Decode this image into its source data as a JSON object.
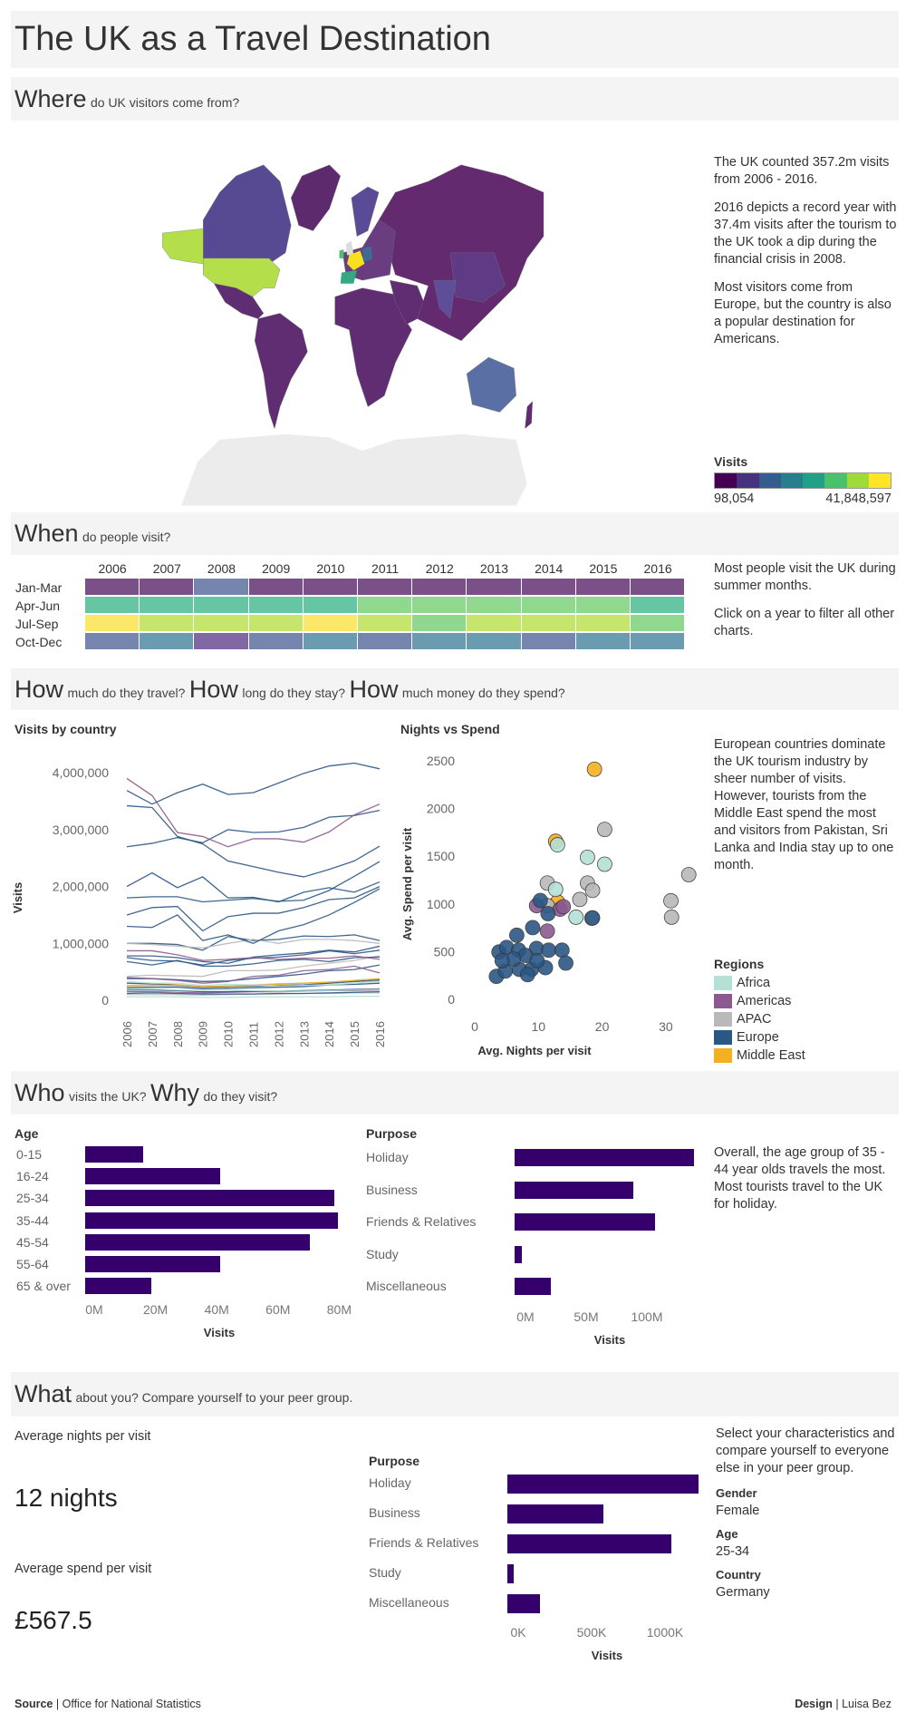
{
  "title": "The UK as a Travel Destination",
  "where": {
    "heading_big": "Where",
    "heading_small": "do UK visitors come from?",
    "text1": "The UK counted 357.2m visits from 2006 - 2016.",
    "text2": "2016 depicts a record year with 37.4m visits after the tourism to the UK took a dip during the financial crisis in 2008.",
    "text3": "Most visitors come from Europe, but the country is also a popular destination for Americans.",
    "legend_title": "Visits",
    "legend_min": "98,054",
    "legend_max": "41,848,597",
    "legend_colors": [
      "#440154",
      "#46327e",
      "#365c8d",
      "#277f8e",
      "#1fa187",
      "#4ac16d",
      "#a0da39",
      "#fde725"
    ]
  },
  "when": {
    "heading_big": "When",
    "heading_small": "do people visit?",
    "years": [
      "2006",
      "2007",
      "2008",
      "2009",
      "2010",
      "2011",
      "2012",
      "2013",
      "2014",
      "2015",
      "2016"
    ],
    "quarters": [
      "Jan-Mar",
      "Apr-Jun",
      "Jul-Sep",
      "Oct-Dec"
    ],
    "cells": [
      [
        "#7b4f87",
        "#7b4f87",
        "#7685ad",
        "#7b4f87",
        "#7b4f87",
        "#7b4f87",
        "#7b4f87",
        "#7b4f87",
        "#7b4f87",
        "#7b4f87",
        "#7b4f87"
      ],
      [
        "#66c6a4",
        "#66c6a4",
        "#66c6a4",
        "#66c6a4",
        "#66c6a4",
        "#8fd88e",
        "#8fd88e",
        "#8fd88e",
        "#8fd88e",
        "#8fd88e",
        "#66c6a4"
      ],
      [
        "#fce868",
        "#c6e56c",
        "#c6e56c",
        "#c6e56c",
        "#fce868",
        "#c6e56c",
        "#8fd88e",
        "#c6e56c",
        "#c6e56c",
        "#c6e56c",
        "#8fd88e"
      ],
      [
        "#7685ad",
        "#6a9bb0",
        "#8268a2",
        "#7685ad",
        "#6a9bb0",
        "#7685ad",
        "#6a9bb0",
        "#6a9bb0",
        "#7685ad",
        "#6a9bb0",
        "#6a9bb0"
      ]
    ],
    "text1": "Most people visit the UK during summer months.",
    "text2": "Click on a year to filter all other charts."
  },
  "how": {
    "h1_big": "How",
    "h1_small": "much do they travel?",
    "h2_big": "How",
    "h2_small": "long do they stay?",
    "h3_big": "How",
    "h3_small": "much money do they spend?",
    "text1": "European countries dominate the UK tourism industry by sheer number of visits.",
    "text2": "However, tourists from the Middle East spend the most and visitors from Pakistan, Sri Lanka and India stay up to one month.",
    "legend_title": "Regions",
    "regions": [
      {
        "name": "Africa",
        "color": "#b5e0d6"
      },
      {
        "name": "Americas",
        "color": "#8b5b8f"
      },
      {
        "name": "APAC",
        "color": "#b9b9b9"
      },
      {
        "name": "Europe",
        "color": "#2b5785"
      },
      {
        "name": "Middle East",
        "color": "#f5b021"
      }
    ]
  },
  "chart_data": [
    {
      "type": "line",
      "title": "Visits by country",
      "xlabel": "",
      "ylabel": "Visits",
      "x": [
        "2006",
        "2007",
        "2008",
        "2009",
        "2010",
        "2011",
        "2012",
        "2013",
        "2014",
        "2015",
        "2016"
      ],
      "ylim": [
        0,
        4200000
      ],
      "yticks": [
        {
          "v": 0,
          "label": "0"
        },
        {
          "v": 1000000,
          "label": "1,000,000"
        },
        {
          "v": 2000000,
          "label": "2,000,000"
        },
        {
          "v": 3000000,
          "label": "3,000,000"
        },
        {
          "v": 4000000,
          "label": "4,000,000"
        }
      ],
      "series": [
        {
          "region": "Europe",
          "values": [
            3690000,
            3450000,
            3650000,
            3800000,
            3620000,
            3650000,
            3820000,
            3990000,
            4120000,
            4170000,
            4070000
          ]
        },
        {
          "region": "Europe",
          "values": [
            3420000,
            3390000,
            2880000,
            2750000,
            2450000,
            2350000,
            2250000,
            2170000,
            2300000,
            2450000,
            2710000
          ]
        },
        {
          "region": "Americas",
          "values": [
            3900000,
            3600000,
            2950000,
            2880000,
            2700000,
            2840000,
            2840000,
            2780000,
            2960000,
            3260000,
            3450000
          ]
        },
        {
          "region": "Europe",
          "values": [
            2700000,
            2760000,
            2860000,
            2770000,
            3000000,
            2950000,
            2960000,
            3040000,
            3220000,
            3250000,
            3340000
          ]
        },
        {
          "region": "Europe",
          "values": [
            2000000,
            2240000,
            1980000,
            2170000,
            1800000,
            1810000,
            1730000,
            1900000,
            1980000,
            1900000,
            2080000
          ]
        },
        {
          "region": "Europe",
          "values": [
            1800000,
            1820000,
            1820000,
            1730000,
            1760000,
            1790000,
            1740000,
            1760000,
            1930000,
            2180000,
            2440000
          ]
        },
        {
          "region": "Europe",
          "values": [
            1500000,
            1630000,
            1650000,
            1220000,
            1470000,
            1530000,
            1530000,
            1630000,
            1770000,
            1800000,
            2000000
          ]
        },
        {
          "region": "Europe",
          "values": [
            1300000,
            1280000,
            1500000,
            1050000,
            1150000,
            1000000,
            1220000,
            1330000,
            1500000,
            1720000,
            1960000
          ]
        },
        {
          "region": "APAC",
          "values": [
            1000000,
            980000,
            950000,
            920000,
            1000000,
            1070000,
            1000000,
            1070000,
            1070000,
            1050000,
            1000000
          ]
        },
        {
          "region": "Europe",
          "values": [
            1000000,
            1000000,
            980000,
            880000,
            1120000,
            1050000,
            1070000,
            1130000,
            1120000,
            1150000,
            1050000
          ]
        },
        {
          "region": "Americas",
          "values": [
            870000,
            870000,
            800000,
            700000,
            720000,
            750000,
            720000,
            740000,
            740000,
            780000,
            720000
          ]
        },
        {
          "region": "Europe",
          "values": [
            780000,
            780000,
            750000,
            680000,
            650000,
            760000,
            800000,
            830000,
            880000,
            850000,
            950000
          ]
        },
        {
          "region": "Europe",
          "values": [
            750000,
            700000,
            690000,
            620000,
            700000,
            740000,
            760000,
            800000,
            870000,
            820000,
            880000
          ]
        },
        {
          "region": "Europe",
          "values": [
            680000,
            620000,
            700000,
            600000,
            600000,
            640000,
            700000,
            720000,
            680000,
            750000,
            760000
          ]
        },
        {
          "region": "APAC",
          "values": [
            420000,
            440000,
            430000,
            420000,
            520000,
            520000,
            530000,
            600000,
            650000,
            700000,
            780000
          ]
        },
        {
          "region": "Americas",
          "values": [
            400000,
            380000,
            350000,
            300000,
            330000,
            420000,
            440000,
            520000,
            540000,
            600000,
            480000
          ]
        },
        {
          "region": "Europe",
          "values": [
            380000,
            380000,
            360000,
            330000,
            340000,
            380000,
            420000,
            460000,
            520000,
            540000,
            620000
          ]
        },
        {
          "region": "Africa",
          "values": [
            330000,
            300000,
            300000,
            260000,
            280000,
            270000,
            250000,
            260000,
            270000,
            300000,
            320000
          ]
        },
        {
          "region": "Middle East",
          "values": [
            250000,
            260000,
            270000,
            240000,
            250000,
            260000,
            280000,
            300000,
            320000,
            350000,
            380000
          ]
        },
        {
          "region": "Europe",
          "values": [
            300000,
            290000,
            270000,
            230000,
            240000,
            250000,
            260000,
            270000,
            300000,
            330000,
            360000
          ]
        },
        {
          "region": "APAC",
          "values": [
            260000,
            270000,
            250000,
            230000,
            250000,
            270000,
            290000,
            300000,
            310000,
            330000,
            340000
          ]
        },
        {
          "region": "Europe",
          "values": [
            220000,
            230000,
            230000,
            200000,
            210000,
            220000,
            230000,
            240000,
            270000,
            280000,
            300000
          ]
        },
        {
          "region": "Africa",
          "values": [
            200000,
            200000,
            180000,
            170000,
            180000,
            170000,
            160000,
            160000,
            170000,
            180000,
            190000
          ]
        },
        {
          "region": "Europe",
          "values": [
            180000,
            180000,
            170000,
            150000,
            150000,
            160000,
            160000,
            170000,
            180000,
            190000,
            200000
          ]
        },
        {
          "region": "Americas",
          "values": [
            150000,
            150000,
            140000,
            130000,
            140000,
            150000,
            150000,
            160000,
            170000,
            170000,
            180000
          ]
        },
        {
          "region": "Europe",
          "values": [
            120000,
            130000,
            120000,
            110000,
            110000,
            110000,
            120000,
            120000,
            130000,
            140000,
            150000
          ]
        },
        {
          "region": "APAC",
          "values": [
            100000,
            100000,
            100000,
            90000,
            100000,
            110000,
            110000,
            120000,
            120000,
            130000,
            130000
          ]
        },
        {
          "region": "Africa",
          "values": [
            60000,
            60000,
            60000,
            50000,
            50000,
            60000,
            60000,
            60000,
            60000,
            70000,
            70000
          ]
        }
      ]
    },
    {
      "type": "scatter",
      "title": "Nights vs Spend",
      "xlabel": "Avg. Nights per visit",
      "ylabel": "Avg. Spend per visit",
      "xlim": [
        0,
        35
      ],
      "ylim": [
        0,
        2500
      ],
      "xticks": [
        0,
        10,
        20,
        30
      ],
      "yticks": [
        0,
        500,
        1000,
        1500,
        2000,
        2500
      ],
      "points": [
        {
          "region": "Middle East",
          "x": 18.8,
          "y": 2412
        },
        {
          "region": "Middle East",
          "x": 12.7,
          "y": 1657
        },
        {
          "region": "Middle East",
          "x": 13.0,
          "y": 1020
        },
        {
          "region": "APAC",
          "x": 20.4,
          "y": 1781
        },
        {
          "region": "APAC",
          "x": 33.6,
          "y": 1307
        },
        {
          "region": "APAC",
          "x": 30.8,
          "y": 1033
        },
        {
          "region": "APAC",
          "x": 30.9,
          "y": 861
        },
        {
          "region": "APAC",
          "x": 11.4,
          "y": 1219
        },
        {
          "region": "APAC",
          "x": 17.7,
          "y": 1219
        },
        {
          "region": "APAC",
          "x": 18.5,
          "y": 1142
        },
        {
          "region": "APAC",
          "x": 16.5,
          "y": 1047
        },
        {
          "region": "APAC",
          "x": 11.4,
          "y": 982
        },
        {
          "region": "APAC",
          "x": 18.4,
          "y": 850
        },
        {
          "region": "Africa",
          "x": 13.0,
          "y": 1620
        },
        {
          "region": "Africa",
          "x": 17.7,
          "y": 1489
        },
        {
          "region": "Africa",
          "x": 20.4,
          "y": 1416
        },
        {
          "region": "Africa",
          "x": 12.7,
          "y": 1153
        },
        {
          "region": "Africa",
          "x": 15.9,
          "y": 861
        },
        {
          "region": "Americas",
          "x": 9.7,
          "y": 982
        },
        {
          "region": "Americas",
          "x": 13.4,
          "y": 945
        },
        {
          "region": "Americas",
          "x": 11.4,
          "y": 715
        },
        {
          "region": "Americas",
          "x": 13.9,
          "y": 971
        },
        {
          "region": "Europe",
          "x": 10.3,
          "y": 1036
        },
        {
          "region": "Europe",
          "x": 11.5,
          "y": 898
        },
        {
          "region": "Europe",
          "x": 9.1,
          "y": 752
        },
        {
          "region": "Europe",
          "x": 6.6,
          "y": 672
        },
        {
          "region": "Europe",
          "x": 3.8,
          "y": 496
        },
        {
          "region": "Europe",
          "x": 5.0,
          "y": 544
        },
        {
          "region": "Europe",
          "x": 6.9,
          "y": 515
        },
        {
          "region": "Europe",
          "x": 9.7,
          "y": 533
        },
        {
          "region": "Europe",
          "x": 11.6,
          "y": 515
        },
        {
          "region": "Europe",
          "x": 13.7,
          "y": 515
        },
        {
          "region": "Europe",
          "x": 14.3,
          "y": 380
        },
        {
          "region": "Europe",
          "x": 3.4,
          "y": 241
        },
        {
          "region": "Europe",
          "x": 4.8,
          "y": 296
        },
        {
          "region": "Europe",
          "x": 7.0,
          "y": 314
        },
        {
          "region": "Europe",
          "x": 8.9,
          "y": 314
        },
        {
          "region": "Europe",
          "x": 11.1,
          "y": 332
        },
        {
          "region": "Europe",
          "x": 8.0,
          "y": 460
        },
        {
          "region": "Europe",
          "x": 6.1,
          "y": 423
        },
        {
          "region": "Europe",
          "x": 8.3,
          "y": 259
        },
        {
          "region": "Europe",
          "x": 18.5,
          "y": 854
        },
        {
          "region": "Europe",
          "x": 4.3,
          "y": 405
        },
        {
          "region": "Europe",
          "x": 9.8,
          "y": 405
        }
      ]
    },
    {
      "type": "bar",
      "title": "Age",
      "xlabel": "Visits",
      "categories": [
        "0-15",
        "16-24",
        "25-34",
        "35-44",
        "45-54",
        "55-64",
        "65 & over"
      ],
      "values": [
        18.8,
        44,
        81.5,
        82.6,
        73.5,
        44,
        21.7
      ],
      "unit": "M",
      "xticks": [
        {
          "v": 0,
          "label": "0M"
        },
        {
          "v": 20,
          "label": "20M"
        },
        {
          "v": 40,
          "label": "40M"
        },
        {
          "v": 60,
          "label": "60M"
        },
        {
          "v": 80,
          "label": "80M"
        }
      ]
    },
    {
      "type": "bar",
      "title": "Purpose",
      "xlabel": "Visits",
      "categories": [
        "Holiday",
        "Business",
        "Friends & Relatives",
        "Study",
        "Miscellaneous"
      ],
      "values": [
        148,
        98,
        116,
        6,
        30
      ],
      "unit": "M",
      "xticks": [
        {
          "v": 0,
          "label": "0M"
        },
        {
          "v": 50,
          "label": "50M"
        },
        {
          "v": 100,
          "label": "100M"
        }
      ]
    },
    {
      "type": "bar",
      "title": "Purpose",
      "xlabel": "Visits",
      "categories": [
        "Holiday",
        "Business",
        "Friends & Relatives",
        "Study",
        "Miscellaneous"
      ],
      "values": [
        1300,
        654,
        1120,
        45,
        225
      ],
      "unit": "K",
      "xticks": [
        {
          "v": 0,
          "label": "0K"
        },
        {
          "v": 500,
          "label": "500K"
        },
        {
          "v": 1000,
          "label": "1000K"
        }
      ]
    }
  ],
  "who": {
    "h1_big": "Who",
    "h1_small": "visits the UK?",
    "h2_big": "Why",
    "h2_small": "do they visit?",
    "text": "Overall, the age group of 35 - 44 year olds travels the most. Most tourists travel to the UK for holiday."
  },
  "what": {
    "heading_big": "What",
    "heading_small": "about you? Compare yourself to your peer group.",
    "nights_label": "Average nights per visit",
    "nights_value": "12 nights",
    "spend_label": "Average spend per visit",
    "spend_value": "£567.5",
    "text": "Select your characteristics and compare yourself to everyone else in your peer group.",
    "gender_label": "Gender",
    "gender_value": "Female",
    "age_label": "Age",
    "age_value": "25-34",
    "country_label": "Country",
    "country_value": "Germany"
  },
  "footer": {
    "source_label": "Source",
    "source_value": "Office for National Statistics",
    "design_label": "Design",
    "design_value": "Luisa Bez"
  }
}
